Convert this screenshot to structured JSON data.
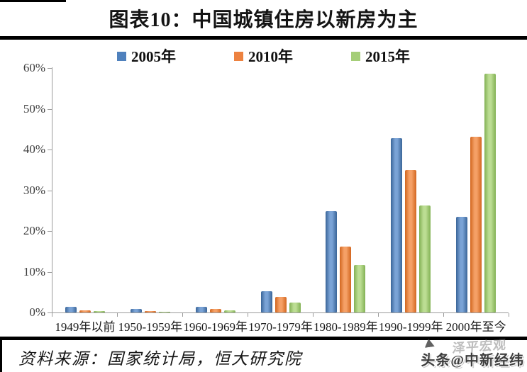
{
  "header": {
    "title": "图表10：中国城镇住房以新房为主"
  },
  "chart_data": {
    "type": "bar",
    "title": "图表10：中国城镇住房以新房为主",
    "categories": [
      "1949年以前",
      "1950-1959年",
      "1960-1969年",
      "1970-1979年",
      "1980-1989年",
      "1990-1999年",
      "2000年至今"
    ],
    "series": [
      {
        "name": "2005年",
        "color": "#4F81BD",
        "color_light": "#7AA3D6",
        "color_dark": "#3A6598",
        "values": [
          1.4,
          0.8,
          1.4,
          5.3,
          24.9,
          42.7,
          23.5
        ]
      },
      {
        "name": "2010年",
        "color": "#ED8240",
        "color_light": "#F5A066",
        "color_dark": "#D2661F",
        "values": [
          0.6,
          0.4,
          0.9,
          3.8,
          16.1,
          35.0,
          43.2
        ]
      },
      {
        "name": "2015年",
        "color": "#A5CE78",
        "color_light": "#BCDD93",
        "color_dark": "#82B154",
        "values": [
          0.3,
          0.2,
          0.6,
          2.4,
          11.6,
          26.3,
          58.6
        ]
      }
    ],
    "yticks": [
      "0%",
      "10%",
      "20%",
      "30%",
      "40%",
      "50%",
      "60%"
    ],
    "ylim": [
      0,
      60
    ],
    "grid": false,
    "legend_position": "top",
    "xlabel": "",
    "ylabel": ""
  },
  "footer": {
    "source": "资料来源：国家统计局，恒大研究院",
    "watermark": "头条@中新经纬",
    "watermark_ghost": "泽平宏观"
  }
}
